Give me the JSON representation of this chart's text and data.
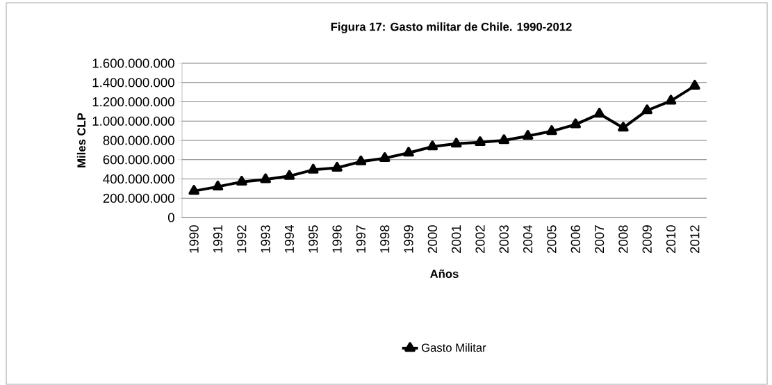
{
  "chart_data": {
    "type": "line",
    "title": "Figura 17: Gasto militar de Chile. 1990-2012",
    "xlabel": "Años",
    "ylabel": "Miles CLP",
    "categories": [
      "1990",
      "1991",
      "1992",
      "1993",
      "1994",
      "1995",
      "1996",
      "1997",
      "1998",
      "1999",
      "2000",
      "2001",
      "2002",
      "2003",
      "2004",
      "2005",
      "2006",
      "2007",
      "2008",
      "2009",
      "2010",
      "2012"
    ],
    "series": [
      {
        "name": "Gasto Militar",
        "color": "#000000",
        "values": [
          275000000,
          320000000,
          370000000,
          395000000,
          430000000,
          495000000,
          515000000,
          580000000,
          615000000,
          670000000,
          735000000,
          765000000,
          780000000,
          800000000,
          845000000,
          895000000,
          965000000,
          1075000000,
          930000000,
          1110000000,
          1210000000,
          1365000000
        ]
      }
    ],
    "ylim": [
      0,
      1600000000
    ],
    "yticks": [
      0,
      {
        "value": 200000000,
        "label": "200.000.000"
      },
      {
        "value": 400000000,
        "label": "400.000.000"
      },
      {
        "value": 600000000,
        "label": "600.000.000"
      },
      {
        "value": 800000000,
        "label": "800.000.000"
      },
      {
        "value": 1000000000,
        "label": "1.000.000.000"
      },
      {
        "value": 1200000000,
        "label": "1.200.000.000"
      },
      {
        "value": 1400000000,
        "label": "1.400.000.000"
      },
      {
        "value": 1600000000,
        "label": "1.600.000.000"
      }
    ],
    "grid": "y",
    "legend": "bottom",
    "marker": "triangle",
    "line_style": "solid"
  }
}
